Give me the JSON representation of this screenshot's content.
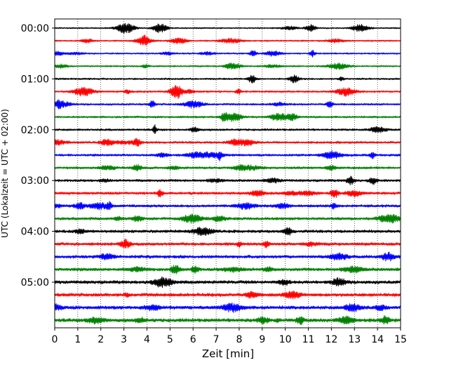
{
  "chart_data": {
    "type": "line",
    "title": "",
    "xlabel": "Zeit  [min]",
    "ylabel": "UTC (Lokalzeit = UTC + 02:00)",
    "xlim": [
      0,
      15
    ],
    "x_ticks": [
      "0",
      "1",
      "2",
      "3",
      "4",
      "5",
      "6",
      "7",
      "8",
      "9",
      "10",
      "11",
      "12",
      "13",
      "14",
      "15"
    ],
    "y_ticks": [
      "00:00",
      "01:00",
      "02:00",
      "03:00",
      "04:00",
      "05:00"
    ],
    "grid": "vertical dotted",
    "trace_colors": [
      "#000000",
      "#ff0000",
      "#0000ff",
      "#008000"
    ],
    "trace_minutes_per_line": 15,
    "traces": [
      {
        "start": "00:00",
        "color": "#000000"
      },
      {
        "start": "00:15",
        "color": "#ff0000"
      },
      {
        "start": "00:30",
        "color": "#0000ff"
      },
      {
        "start": "00:45",
        "color": "#008000"
      },
      {
        "start": "01:00",
        "color": "#000000"
      },
      {
        "start": "01:15",
        "color": "#ff0000"
      },
      {
        "start": "01:30",
        "color": "#0000ff"
      },
      {
        "start": "01:45",
        "color": "#008000"
      },
      {
        "start": "02:00",
        "color": "#000000"
      },
      {
        "start": "02:15",
        "color": "#ff0000"
      },
      {
        "start": "02:30",
        "color": "#0000ff"
      },
      {
        "start": "02:45",
        "color": "#008000"
      },
      {
        "start": "03:00",
        "color": "#000000"
      },
      {
        "start": "03:15",
        "color": "#ff0000"
      },
      {
        "start": "03:30",
        "color": "#0000ff"
      },
      {
        "start": "03:45",
        "color": "#008000"
      },
      {
        "start": "04:00",
        "color": "#000000"
      },
      {
        "start": "04:15",
        "color": "#ff0000"
      },
      {
        "start": "04:30",
        "color": "#0000ff"
      },
      {
        "start": "04:45",
        "color": "#008000"
      },
      {
        "start": "05:00",
        "color": "#000000"
      },
      {
        "start": "05:15",
        "color": "#ff0000"
      },
      {
        "start": "05:30",
        "color": "#0000ff"
      },
      {
        "start": "05:45",
        "color": "#008000"
      }
    ]
  }
}
